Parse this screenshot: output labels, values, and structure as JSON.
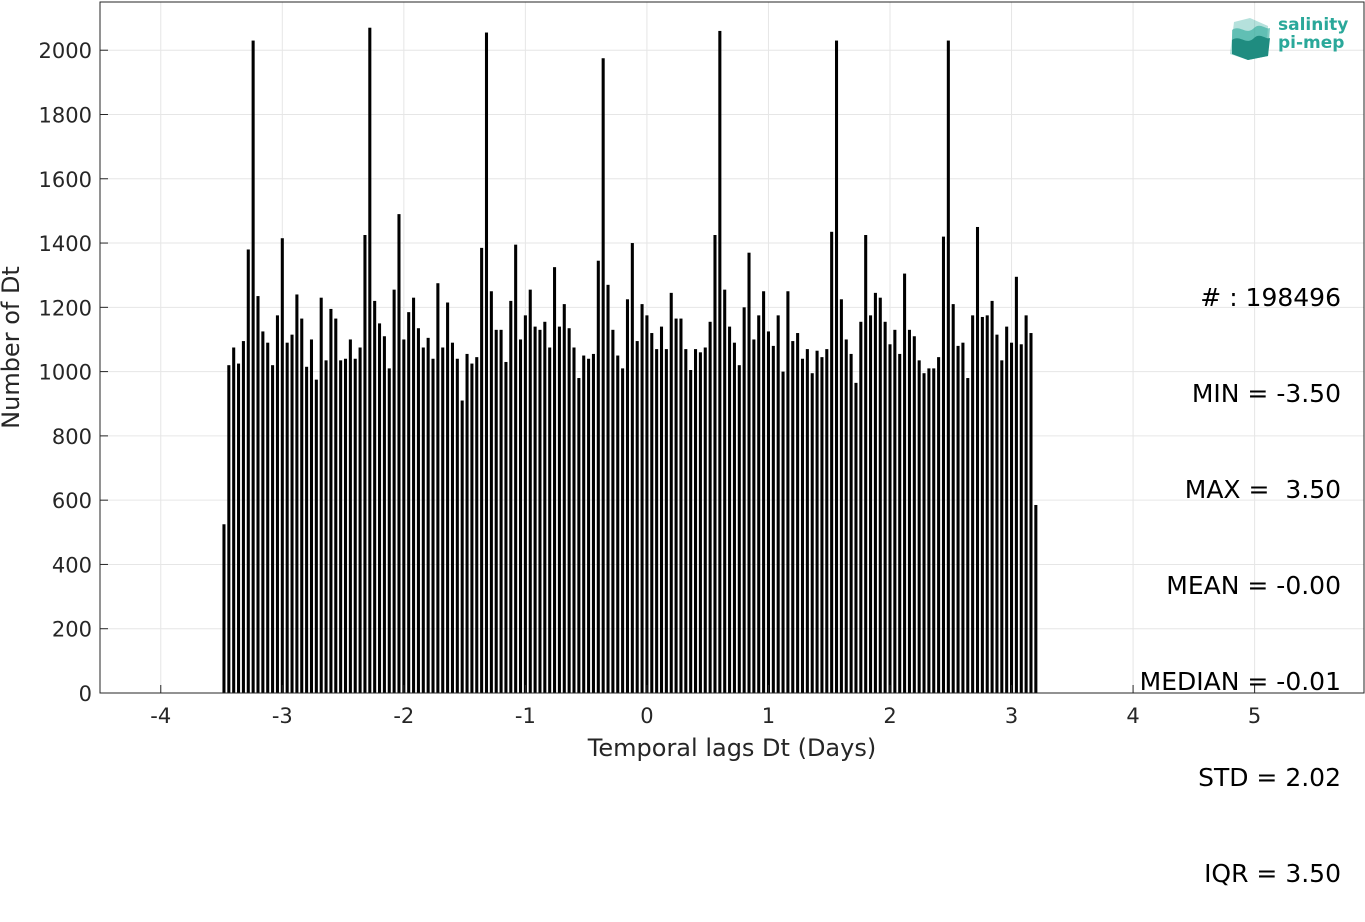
{
  "logo": {
    "line1": "salinity",
    "line2": "pi-mep"
  },
  "stats": [
    "# : 198496",
    "MIN = -3.50",
    "MAX =  3.50",
    "MEAN = -0.00",
    "MEDIAN = -0.01",
    "STD = 2.02",
    "IQR = 3.50"
  ],
  "colors": {
    "bars": "#000000",
    "grid": "#e6e6e6",
    "axis": "#262626",
    "logo": "#2aa89a"
  },
  "chart_data": {
    "type": "bar",
    "title": "",
    "xlabel": "Temporal lags Dt (Days)",
    "ylabel": "Number of Dt",
    "xlim": [
      -4.5,
      5.9
    ],
    "ylim": [
      0,
      2150
    ],
    "xticks": [
      -4,
      -3,
      -2,
      -1,
      0,
      1,
      2,
      3,
      4,
      5
    ],
    "yticks": [
      0,
      200,
      400,
      600,
      800,
      1000,
      1200,
      1400,
      1600,
      1800,
      2000
    ],
    "grid": true,
    "bin_start": -3.5,
    "bin_width": 0.04,
    "values": [
      525,
      1020,
      1075,
      1025,
      1095,
      1380,
      2030,
      1235,
      1125,
      1090,
      1020,
      1175,
      1415,
      1090,
      1115,
      1240,
      1165,
      1015,
      1100,
      975,
      1230,
      1035,
      1195,
      1165,
      1035,
      1040,
      1100,
      1040,
      1075,
      1425,
      2070,
      1220,
      1150,
      1110,
      1010,
      1255,
      1490,
      1100,
      1185,
      1230,
      1135,
      1075,
      1105,
      1040,
      1275,
      1075,
      1215,
      1090,
      1040,
      910,
      1055,
      1025,
      1045,
      1385,
      2055,
      1250,
      1130,
      1130,
      1030,
      1220,
      1395,
      1100,
      1175,
      1255,
      1140,
      1130,
      1155,
      1075,
      1325,
      1140,
      1210,
      1135,
      1075,
      980,
      1050,
      1040,
      1055,
      1345,
      1975,
      1270,
      1130,
      1050,
      1010,
      1225,
      1400,
      1095,
      1210,
      1175,
      1120,
      1070,
      1140,
      1070,
      1245,
      1165,
      1165,
      1070,
      1005,
      1070,
      1060,
      1075,
      1155,
      1425,
      2060,
      1255,
      1140,
      1090,
      1020,
      1200,
      1370,
      1100,
      1175,
      1250,
      1125,
      1080,
      1175,
      1000,
      1250,
      1095,
      1120,
      1040,
      1070,
      995,
      1065,
      1045,
      1070,
      1435,
      2030,
      1225,
      1100,
      1055,
      965,
      1155,
      1425,
      1175,
      1245,
      1230,
      1155,
      1085,
      1130,
      1055,
      1305,
      1130,
      1110,
      1035,
      995,
      1010,
      1010,
      1045,
      1420,
      2030,
      1210,
      1080,
      1090,
      980,
      1175,
      1450,
      1170,
      1175,
      1220,
      1115,
      1035,
      1140,
      1090,
      1295,
      1085,
      1175,
      1120,
      585
    ]
  }
}
